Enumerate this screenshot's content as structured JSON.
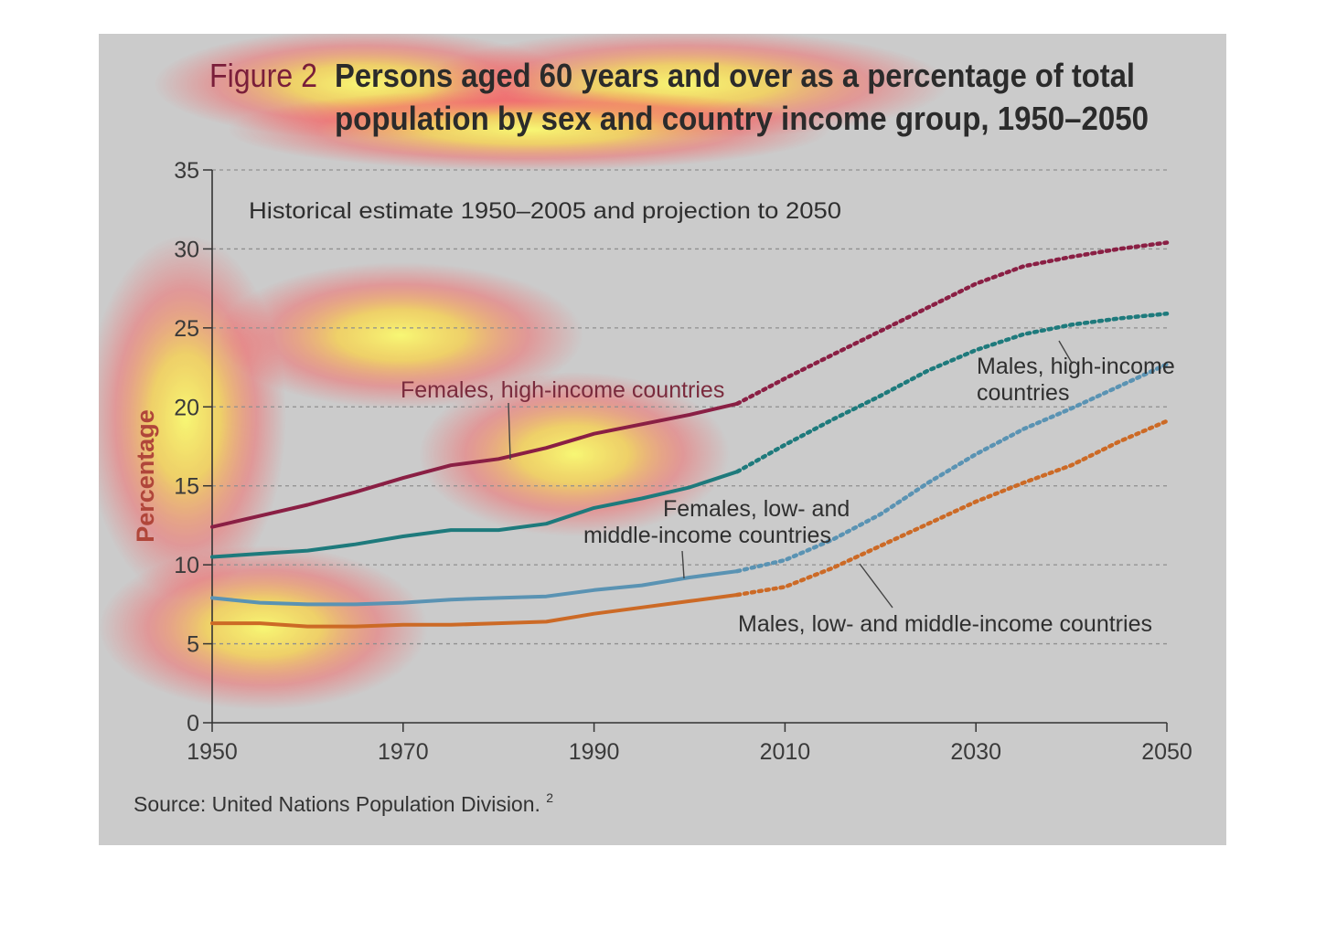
{
  "chart_data": {
    "type": "line",
    "figure_label": "Figure 2",
    "title_line1": "Persons aged 60 years and over as a percentage of total",
    "title_line2": "population by sex and country income group, 1950–2050",
    "subtitle": "Historical estimate 1950–2005 and projection to 2050",
    "ylabel": "Percentage",
    "xlabel": "",
    "source": "Source: United Nations Population Division.",
    "source_note": "2",
    "xlim": [
      1950,
      2050
    ],
    "ylim": [
      0,
      35
    ],
    "x_ticks": [
      "1950",
      "1970",
      "1990",
      "2010",
      "2030",
      "2050"
    ],
    "y_ticks": [
      "0",
      "5",
      "10",
      "15",
      "20",
      "25",
      "30",
      "35"
    ],
    "grid": "horizontal-dashed",
    "historical_end": 2005,
    "series": [
      {
        "label_lines": [
          "Females, high-income countries"
        ],
        "color": "#8a1f44",
        "points": [
          [
            1950,
            12.4
          ],
          [
            1955,
            13.1
          ],
          [
            1960,
            13.8
          ],
          [
            1965,
            14.6
          ],
          [
            1970,
            15.5
          ],
          [
            1975,
            16.3
          ],
          [
            1980,
            16.7
          ],
          [
            1985,
            17.4
          ],
          [
            1990,
            18.3
          ],
          [
            1995,
            18.9
          ],
          [
            2000,
            19.5
          ],
          [
            2005,
            20.2
          ],
          [
            2010,
            21.8
          ],
          [
            2015,
            23.3
          ],
          [
            2020,
            24.8
          ],
          [
            2025,
            26.3
          ],
          [
            2030,
            27.8
          ],
          [
            2035,
            28.9
          ],
          [
            2040,
            29.5
          ],
          [
            2045,
            30.0
          ],
          [
            2050,
            30.4
          ]
        ]
      },
      {
        "label_lines": [
          "Males, high-income",
          "countries"
        ],
        "color": "#1e7a7c",
        "points": [
          [
            1950,
            10.5
          ],
          [
            1955,
            10.7
          ],
          [
            1960,
            10.9
          ],
          [
            1965,
            11.3
          ],
          [
            1970,
            11.8
          ],
          [
            1975,
            12.2
          ],
          [
            1980,
            12.2
          ],
          [
            1985,
            12.6
          ],
          [
            1990,
            13.6
          ],
          [
            1995,
            14.2
          ],
          [
            2000,
            14.9
          ],
          [
            2005,
            15.9
          ],
          [
            2010,
            17.6
          ],
          [
            2015,
            19.2
          ],
          [
            2020,
            20.7
          ],
          [
            2025,
            22.3
          ],
          [
            2030,
            23.6
          ],
          [
            2035,
            24.6
          ],
          [
            2040,
            25.2
          ],
          [
            2045,
            25.6
          ],
          [
            2050,
            25.9
          ]
        ]
      },
      {
        "label_lines": [
          "Females, low- and",
          "middle-income countries"
        ],
        "color": "#5a93b3",
        "points": [
          [
            1950,
            7.9
          ],
          [
            1955,
            7.6
          ],
          [
            1960,
            7.5
          ],
          [
            1965,
            7.5
          ],
          [
            1970,
            7.6
          ],
          [
            1975,
            7.8
          ],
          [
            1980,
            7.9
          ],
          [
            1985,
            8.0
          ],
          [
            1990,
            8.4
          ],
          [
            1995,
            8.7
          ],
          [
            2000,
            9.2
          ],
          [
            2005,
            9.6
          ],
          [
            2010,
            10.3
          ],
          [
            2015,
            11.6
          ],
          [
            2020,
            13.2
          ],
          [
            2025,
            15.2
          ],
          [
            2030,
            17.0
          ],
          [
            2035,
            18.6
          ],
          [
            2040,
            19.9
          ],
          [
            2045,
            21.3
          ],
          [
            2050,
            22.7
          ]
        ]
      },
      {
        "label_lines": [
          "Males, low- and middle-income countries"
        ],
        "color": "#cc6a26",
        "points": [
          [
            1950,
            6.3
          ],
          [
            1955,
            6.3
          ],
          [
            1960,
            6.1
          ],
          [
            1965,
            6.1
          ],
          [
            1970,
            6.2
          ],
          [
            1975,
            6.2
          ],
          [
            1980,
            6.3
          ],
          [
            1985,
            6.4
          ],
          [
            1990,
            6.9
          ],
          [
            1995,
            7.3
          ],
          [
            2000,
            7.7
          ],
          [
            2005,
            8.1
          ],
          [
            2010,
            8.6
          ],
          [
            2015,
            9.8
          ],
          [
            2020,
            11.2
          ],
          [
            2025,
            12.6
          ],
          [
            2030,
            14.0
          ],
          [
            2035,
            15.2
          ],
          [
            2040,
            16.3
          ],
          [
            2045,
            17.8
          ],
          [
            2050,
            19.1
          ]
        ]
      }
    ]
  }
}
